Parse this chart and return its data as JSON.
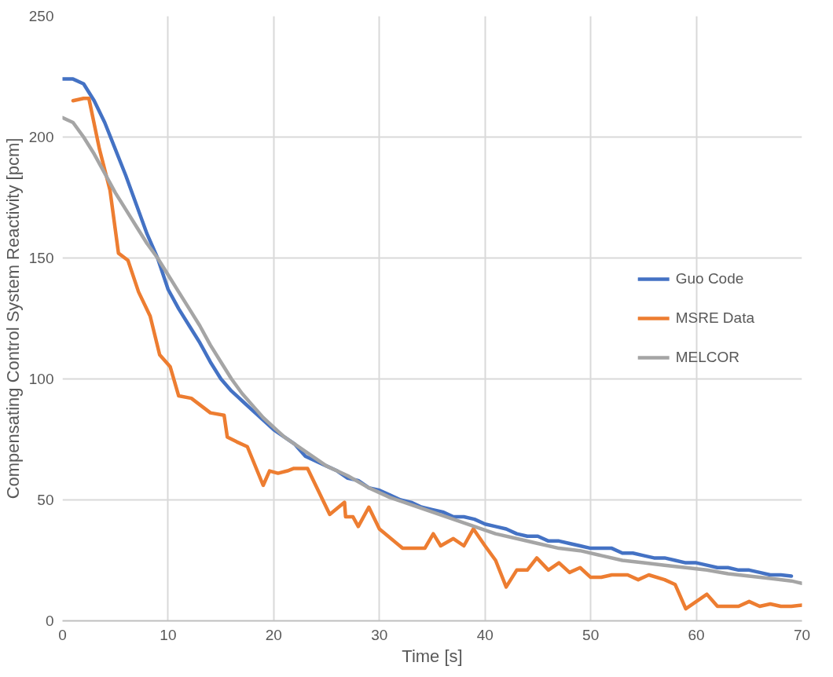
{
  "chart_data": {
    "type": "line",
    "xlabel": "Time [s]",
    "ylabel": "Compensating Control System Reactivity [pcm]",
    "xlim": [
      0,
      70
    ],
    "xticks": [
      0,
      10,
      20,
      30,
      40,
      50,
      60,
      70
    ],
    "ylim": [
      0,
      250
    ],
    "yticks": [
      0,
      50,
      100,
      150,
      200,
      250
    ],
    "grid": true,
    "legend": "right",
    "line_style": "solid",
    "marker": "none",
    "series": [
      {
        "name": "Guo Code",
        "color": "#4472c4",
        "x": [
          0,
          1,
          2,
          3,
          4,
          5,
          6,
          7,
          8,
          9,
          10,
          11,
          12,
          13,
          14,
          15,
          16,
          17,
          18,
          19,
          20,
          22,
          23,
          24,
          25,
          26,
          27,
          28,
          29,
          30,
          31,
          32,
          33,
          34,
          35,
          36,
          37,
          38,
          39,
          40,
          41,
          42,
          43,
          44,
          45,
          46,
          47,
          48,
          49,
          50,
          51,
          52,
          53,
          54,
          55,
          56,
          57,
          58,
          59,
          60,
          61,
          62,
          63,
          64,
          65,
          66,
          67,
          68,
          69
        ],
        "values": [
          224,
          224,
          222,
          215,
          206,
          195,
          184,
          172,
          160,
          150,
          137,
          129,
          122,
          115,
          107,
          100,
          95,
          91,
          87,
          83,
          79,
          73,
          68,
          66,
          64,
          62,
          59,
          58,
          55,
          54,
          52,
          50,
          49,
          47,
          46,
          45,
          43,
          43,
          42,
          40,
          39,
          38,
          36,
          35,
          35,
          33,
          33,
          32,
          31,
          30,
          30,
          30,
          28,
          28,
          27,
          26,
          26,
          25,
          24,
          24,
          23,
          22,
          22,
          21,
          21,
          20,
          19,
          19,
          18.5
        ]
      },
      {
        "name": "MSRE Data",
        "color": "#ed7d31",
        "x": [
          1,
          2,
          2.5,
          3.5,
          4.5,
          5.3,
          6.2,
          7.2,
          8.3,
          9.2,
          10.2,
          11,
          12.2,
          13.1,
          14,
          15.3,
          15.6,
          16.5,
          17.5,
          19,
          19.6,
          20.4,
          21.3,
          21.9,
          23.2,
          25.3,
          26.7,
          26.8,
          27.5,
          28,
          29,
          30,
          32.2,
          34.3,
          35.1,
          35.8,
          37,
          38,
          38.9,
          40,
          41,
          42,
          43,
          44,
          44.9,
          46,
          47,
          48,
          49,
          50,
          51,
          52,
          53.5,
          54.5,
          55.5,
          57,
          58,
          59,
          61,
          62,
          63,
          64,
          65,
          66,
          67,
          68,
          69,
          70
        ],
        "values": [
          215,
          216,
          216,
          195,
          178,
          152,
          149,
          136,
          126,
          110,
          105,
          93,
          92,
          89,
          86,
          85,
          76,
          74,
          72,
          56,
          62,
          61,
          62,
          63,
          63,
          44,
          49,
          43,
          43,
          39,
          47,
          38,
          30,
          30,
          36,
          31,
          34,
          31,
          38,
          31,
          25,
          14,
          21,
          21,
          26,
          21,
          24,
          20,
          22,
          18,
          18,
          19,
          19,
          17,
          19,
          17,
          15,
          5,
          11,
          6,
          6,
          6,
          8,
          6,
          7,
          6,
          6,
          6.5
        ]
      },
      {
        "name": "MELCOR",
        "color": "#a5a5a5",
        "x": [
          0,
          1,
          2,
          3,
          4,
          5,
          6,
          7,
          8,
          9,
          10,
          11,
          12,
          13,
          14,
          15,
          16,
          17,
          18,
          19,
          20,
          21,
          22,
          23,
          24,
          25,
          27,
          29,
          31,
          33,
          35,
          37,
          39,
          41,
          43,
          45,
          47,
          49,
          51,
          53,
          55,
          57,
          59,
          61,
          63,
          65,
          67,
          69,
          70
        ],
        "values": [
          208,
          206,
          200,
          193,
          185,
          177,
          170,
          163,
          156,
          150,
          143,
          136,
          129,
          122,
          114,
          107,
          100,
          94,
          89,
          84,
          80,
          76,
          73,
          70,
          67,
          64,
          60,
          55,
          51,
          48,
          45,
          42,
          39,
          36,
          34,
          32,
          30,
          29,
          27,
          25,
          24,
          23,
          22,
          21,
          19.5,
          18.5,
          17.5,
          16.5,
          15.5
        ]
      }
    ]
  }
}
